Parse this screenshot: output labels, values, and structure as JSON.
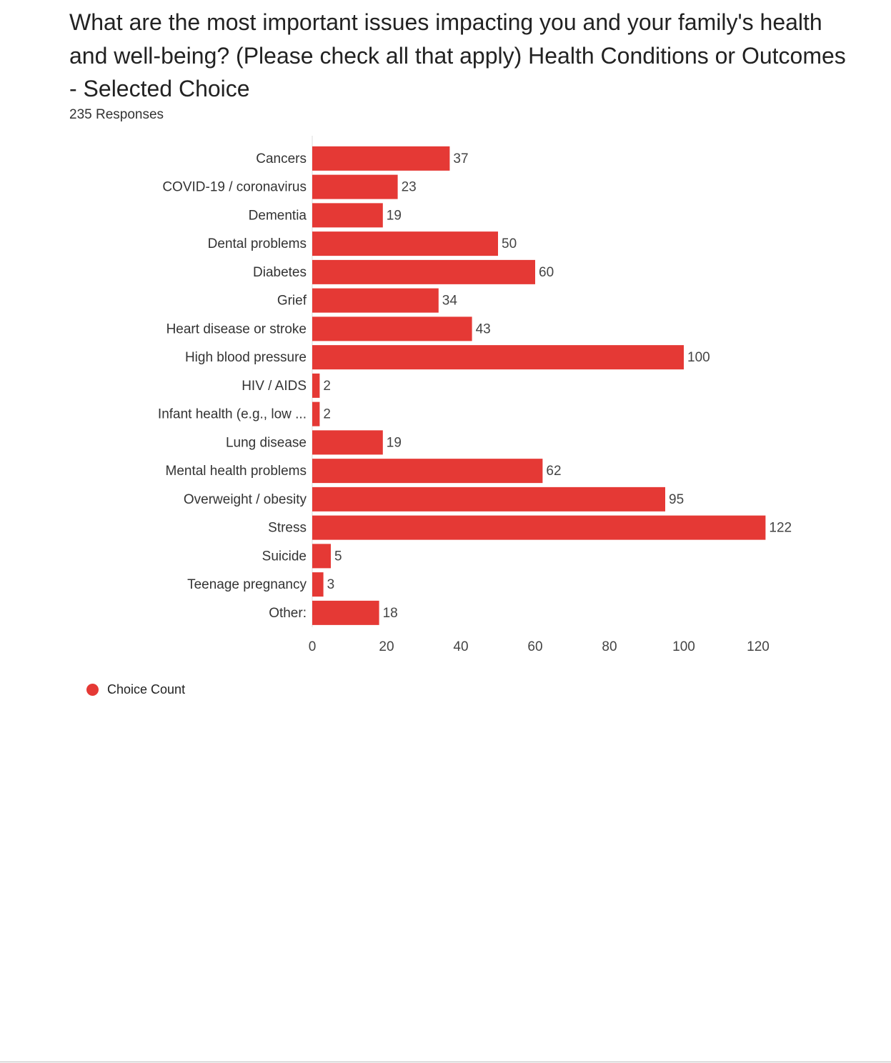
{
  "chart_data": {
    "type": "bar",
    "orientation": "horizontal",
    "title": "What are the most important issues impacting you and your family's health and well-being? (Please check all that apply) Health Conditions or Outcomes - Selected Choice",
    "subtitle": "235 Responses",
    "categories": [
      "Cancers",
      "COVID-19 / coronavirus",
      "Dementia",
      "Dental problems",
      "Diabetes",
      "Grief",
      "Heart disease or stroke",
      "High blood pressure",
      "HIV / AIDS",
      "Infant health (e.g., low ...",
      "Lung disease",
      "Mental health problems",
      "Overweight / obesity",
      "Stress",
      "Suicide",
      "Teenage pregnancy",
      "Other:"
    ],
    "series": [
      {
        "name": "Choice Count",
        "color": "#e53935",
        "values": [
          37,
          23,
          19,
          50,
          60,
          34,
          43,
          100,
          2,
          2,
          19,
          62,
          95,
          122,
          5,
          3,
          18
        ]
      }
    ],
    "xlim": [
      0,
      130
    ],
    "xticks": [
      0,
      20,
      40,
      60,
      80,
      100,
      120
    ],
    "xlabel": "",
    "ylabel": "",
    "legend_position": "bottom-left"
  },
  "legend": {
    "label": "Choice Count"
  }
}
